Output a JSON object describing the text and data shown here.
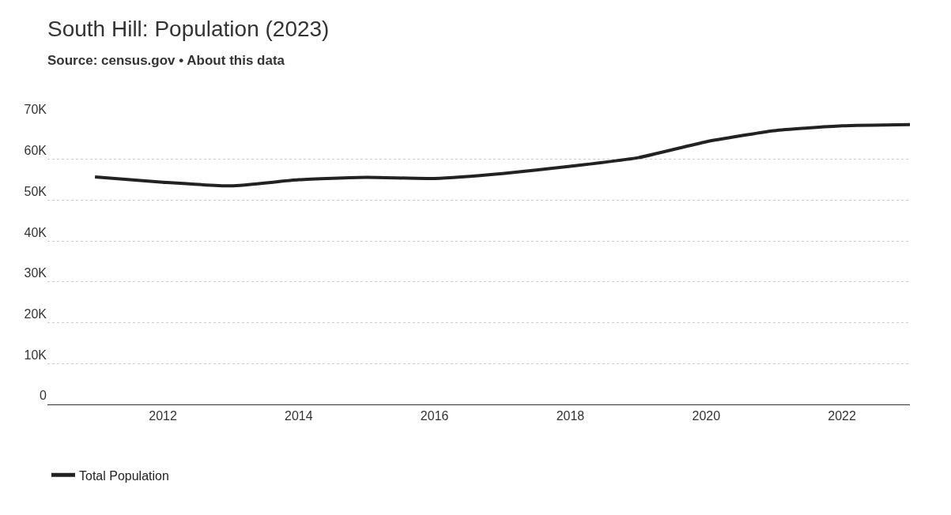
{
  "chart_data": {
    "type": "line",
    "title": "South Hill: Population (2023)",
    "subtitle": "Source: census.gov • About this data",
    "x": [
      2011,
      2012,
      2013,
      2014,
      2015,
      2016,
      2017,
      2018,
      2019,
      2020,
      2021,
      2022,
      2023
    ],
    "series": [
      {
        "name": "Total Population",
        "color": "#222222",
        "values": [
          55700,
          54400,
          53500,
          55000,
          55600,
          55300,
          56500,
          58300,
          60400,
          64300,
          67000,
          68200,
          68500
        ]
      }
    ],
    "xlim": [
      2010.3,
      2023
    ],
    "xticks": [
      2012,
      2014,
      2016,
      2018,
      2020,
      2022
    ],
    "ylim": [
      0,
      70000
    ],
    "yticks": [
      {
        "value": 0,
        "label": "0"
      },
      {
        "value": 10000,
        "label": "10K"
      },
      {
        "value": 20000,
        "label": "20K"
      },
      {
        "value": 30000,
        "label": "30K"
      },
      {
        "value": 40000,
        "label": "40K"
      },
      {
        "value": 50000,
        "label": "50K"
      },
      {
        "value": 60000,
        "label": "60K"
      },
      {
        "value": 70000,
        "label": "70K"
      }
    ],
    "grid": "y",
    "legend": "bottom left",
    "marker": "none",
    "line_style": "solid"
  }
}
